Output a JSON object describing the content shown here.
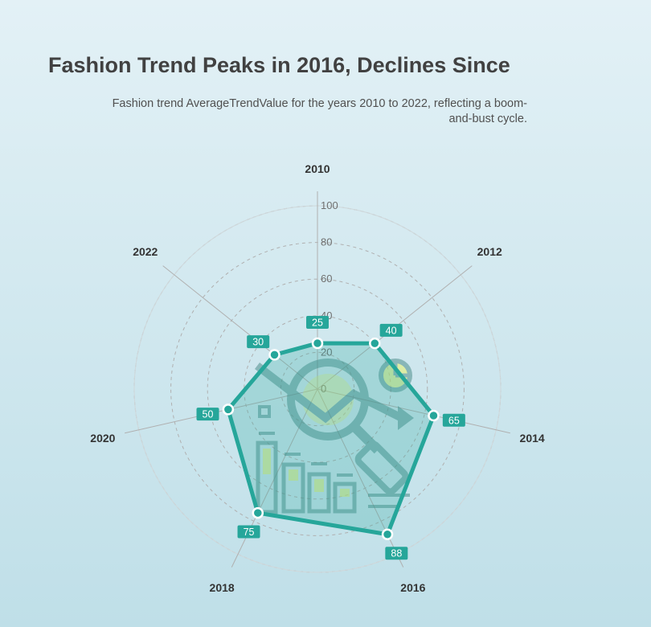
{
  "chart_data": {
    "type": "radar",
    "title": "Fashion Trend Peaks in 2016, Declines Since",
    "subtitle": "Fashion trend AverageTrendValue for the years 2010 to 2022, reflecting a boom-and-bust cycle.",
    "categories": [
      "2010",
      "2012",
      "2014",
      "2016",
      "2018",
      "2020",
      "2022"
    ],
    "series": [
      {
        "values": [
          25,
          40,
          65,
          88,
          75,
          50,
          30
        ]
      }
    ],
    "radial_ticks": [
      "0",
      "20",
      "40",
      "60",
      "80",
      "100"
    ],
    "rlim": [
      0,
      100
    ],
    "grid": true,
    "colors": {
      "series": "#26a69a",
      "fill": "#26a69a",
      "grid": "#b0b0b0"
    },
    "background_icon": "analytics-magnifier-icon"
  }
}
